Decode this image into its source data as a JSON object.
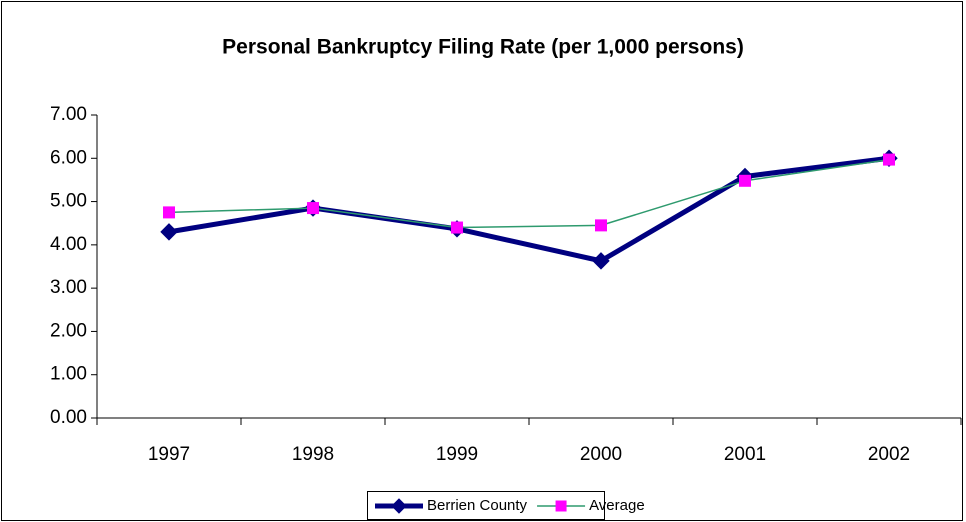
{
  "chart_data": {
    "type": "line",
    "title": "Personal Bankruptcy Filing Rate (per 1,000 persons)",
    "categories": [
      "1997",
      "1998",
      "1999",
      "2000",
      "2001",
      "2002"
    ],
    "series": [
      {
        "name": "Berrien County",
        "color": "#000080",
        "marker": "diamond",
        "values": [
          4.3,
          4.85,
          4.37,
          3.63,
          5.58,
          6.0
        ]
      },
      {
        "name": "Average",
        "color": "#2e9a6e",
        "marker_color": "#ff00ff",
        "marker": "square",
        "values": [
          4.75,
          4.85,
          4.4,
          4.45,
          5.48,
          5.97
        ]
      }
    ],
    "ylim": [
      0,
      7
    ],
    "yticks": [
      {
        "value": 0,
        "label": "0.00"
      },
      {
        "value": 1,
        "label": "1.00"
      },
      {
        "value": 2,
        "label": "2.00"
      },
      {
        "value": 3,
        "label": "3.00"
      },
      {
        "value": 4,
        "label": "4.00"
      },
      {
        "value": 5,
        "label": "5.00"
      },
      {
        "value": 6,
        "label": "6.00"
      },
      {
        "value": 7,
        "label": "7.00"
      }
    ],
    "grid": false,
    "legend": "bottom"
  }
}
